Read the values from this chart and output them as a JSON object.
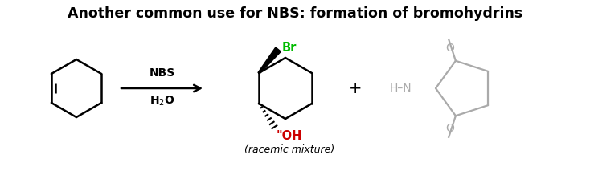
{
  "title": "Another common use for NBS: formation of bromohydrins",
  "title_fontsize": 12.5,
  "title_fontweight": "bold",
  "background_color": "#ffffff",
  "text_color": "#000000",
  "gray_color": "#aaaaaa",
  "green_color": "#00bb00",
  "red_color": "#cc0000",
  "arrow_label_top": "NBS",
  "arrow_label_bottom": "H₂O",
  "plus_sign": "+",
  "racemic_label": "(racemic mixture)"
}
